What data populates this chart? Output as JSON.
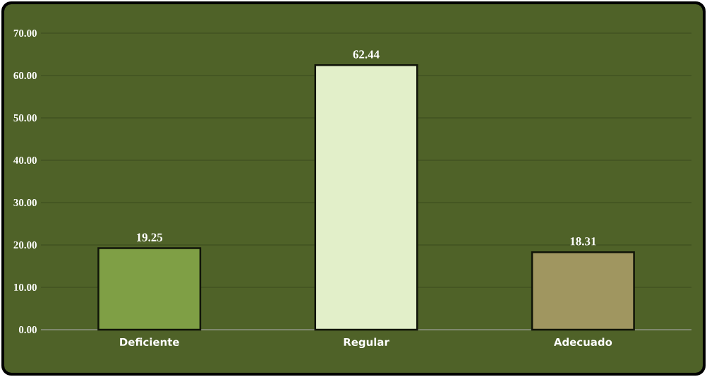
{
  "chart_data": {
    "type": "bar",
    "categories": [
      "Deficiente",
      "Regular",
      "Adecuado"
    ],
    "values": [
      19.25,
      62.44,
      18.31
    ],
    "colors": [
      "#7f9f45",
      "#e2efc9",
      "#a09660"
    ],
    "ylim": [
      0,
      70
    ],
    "yticks": [
      {
        "value": 0,
        "label": "0.00"
      },
      {
        "value": 10,
        "label": "10.00"
      },
      {
        "value": 20,
        "label": "20.00"
      },
      {
        "value": 30,
        "label": "30.00"
      },
      {
        "value": 40,
        "label": "40.00"
      },
      {
        "value": 50,
        "label": "50.00"
      },
      {
        "value": 60,
        "label": "60.00"
      },
      {
        "value": 70,
        "label": "70.00"
      }
    ],
    "grid": "y",
    "data_labels": true
  }
}
